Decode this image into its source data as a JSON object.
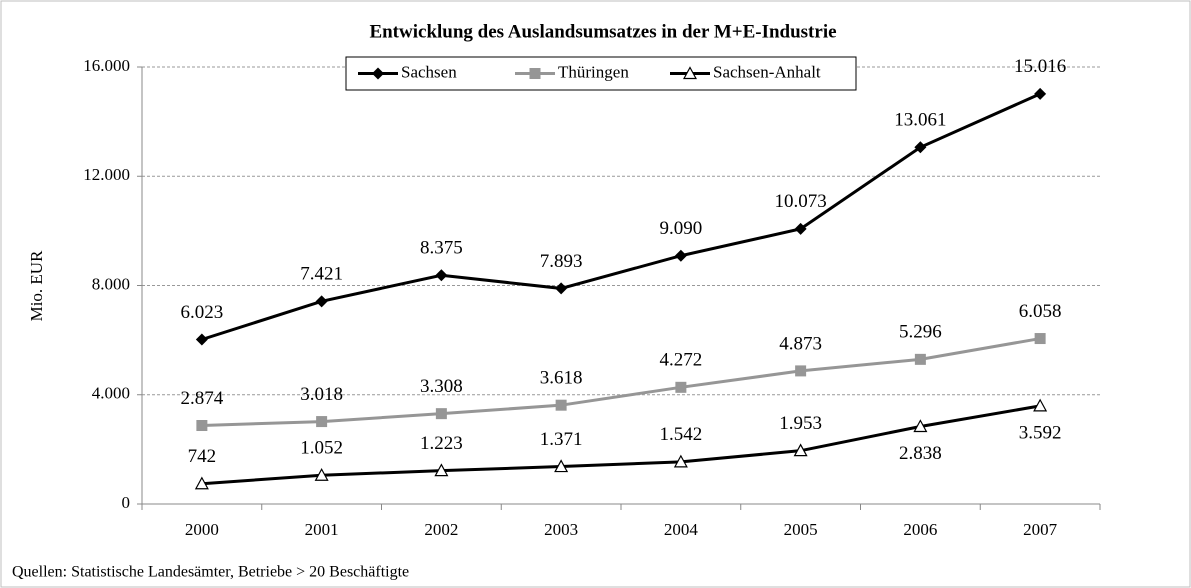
{
  "chart_data": {
    "type": "line",
    "title": "Entwicklung des Auslandsumsatzes in der M+E-Industrie",
    "y_label": "Mio. EUR",
    "source": "Quellen: Statistische Landesämter, Betriebe > 20 Beschäftigte",
    "categories": [
      "2000",
      "2001",
      "2002",
      "2003",
      "2004",
      "2005",
      "2006",
      "2007"
    ],
    "series": [
      {
        "name": "Sachsen",
        "color": "#000000",
        "values": [
          6023,
          7421,
          8375,
          7893,
          9090,
          10073,
          13061,
          15016
        ],
        "value_labels": [
          "6.023",
          "7.421",
          "8.375",
          "7.893",
          "9.090",
          "10.073",
          "13.061",
          "15.016"
        ]
      },
      {
        "name": "Thüringen",
        "color": "#969696",
        "values": [
          2874,
          3018,
          3308,
          3618,
          4272,
          4873,
          5296,
          6058
        ],
        "value_labels": [
          "2.874",
          "3.018",
          "3.308",
          "3.618",
          "4.272",
          "4.873",
          "5.296",
          "6.058"
        ]
      },
      {
        "name": "Sachsen-Anhalt",
        "color": "#000000",
        "values": [
          742,
          1052,
          1223,
          1371,
          1542,
          1953,
          2838,
          3592
        ],
        "value_labels": [
          "742",
          "1.052",
          "1.223",
          "1.371",
          "1.542",
          "1.953",
          "2.838",
          "3.592"
        ]
      }
    ],
    "ylim": [
      0,
      16000
    ],
    "yticks": [
      0,
      {
        "value": 4000,
        "label": "4.000"
      },
      {
        "value": 8000,
        "label": "8.000"
      },
      {
        "value": 12000,
        "label": "12.000"
      },
      {
        "value": 16000,
        "label": "16.000"
      }
    ],
    "grid": true,
    "legend": "top"
  }
}
